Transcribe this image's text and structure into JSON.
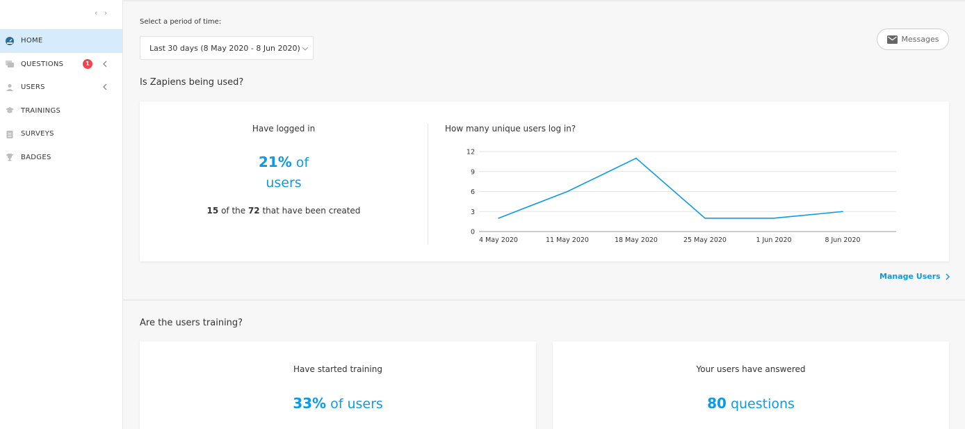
{
  "sidebar": {
    "items": [
      {
        "label": "HOME",
        "icon": "dashboard-icon",
        "active": true
      },
      {
        "label": "QUESTIONS",
        "icon": "questions-icon",
        "badge": "1",
        "chevron": true
      },
      {
        "label": "USERS",
        "icon": "user-icon",
        "chevron": true
      },
      {
        "label": "TRAININGS",
        "icon": "graduation-cap-icon"
      },
      {
        "label": "SURVEYS",
        "icon": "clipboard-icon"
      },
      {
        "label": "BADGES",
        "icon": "trophy-icon"
      }
    ]
  },
  "header": {
    "period_label": "Select a period of time:",
    "period_value": "Last 30 days (8 May 2020 - 8 Jun 2020)",
    "messages_label": "Messages"
  },
  "usage": {
    "title": "Is Zapiens being used?",
    "logged_label": "Have logged in",
    "logged_percent": "21%",
    "logged_of": " of",
    "logged_users": "users",
    "logged_count": "15",
    "logged_of_the": " of the ",
    "logged_total": "72",
    "logged_suffix": " that have been created",
    "chart_title": "How many unique users log in?",
    "manage_label": "Manage Users"
  },
  "chart_data": {
    "type": "line",
    "categories": [
      "4 May 2020",
      "11 May 2020",
      "18 May 2020",
      "25 May 2020",
      "1 Jun 2020",
      "8 Jun 2020"
    ],
    "series": [
      {
        "values": [
          2,
          6,
          11,
          2,
          2,
          3
        ]
      }
    ],
    "yticks": [
      0,
      3,
      6,
      9,
      12
    ],
    "ylim": [
      0,
      12
    ],
    "color": "#0b9ae8",
    "grid": true
  },
  "training": {
    "title": "Are the users training?",
    "started_label": "Have started training",
    "started_percent": "33%",
    "started_suffix": " of users",
    "answered_label": "Your users have answered",
    "answered_count": "80",
    "answered_suffix": " questions"
  }
}
